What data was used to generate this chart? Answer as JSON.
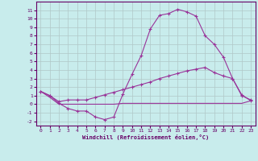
{
  "xlabel": "Windchill (Refroidissement éolien,°C)",
  "background_color": "#c8ecec",
  "grid_color": "#b0c8c8",
  "line_color": "#993399",
  "x_hours": [
    0,
    1,
    2,
    3,
    4,
    5,
    6,
    7,
    8,
    9,
    10,
    11,
    12,
    13,
    14,
    15,
    16,
    17,
    18,
    19,
    20,
    21,
    22,
    23
  ],
  "line1_y": [
    1.5,
    1.0,
    0.1,
    -0.5,
    -0.8,
    -0.8,
    -1.5,
    -1.8,
    -1.5,
    1.2,
    3.5,
    5.7,
    8.8,
    10.4,
    10.6,
    11.1,
    10.8,
    10.3,
    8.0,
    7.0,
    5.5,
    3.0,
    1.0,
    0.5
  ],
  "line2_y": [
    1.5,
    1.0,
    0.3,
    0.5,
    0.5,
    0.5,
    0.8,
    1.1,
    1.4,
    1.7,
    2.0,
    2.3,
    2.6,
    3.0,
    3.3,
    3.6,
    3.9,
    4.1,
    4.3,
    3.7,
    3.3,
    3.0,
    1.1,
    0.4
  ],
  "line3_y": [
    1.5,
    0.8,
    0.0,
    0.0,
    0.0,
    0.0,
    0.0,
    0.0,
    0.0,
    0.1,
    0.1,
    0.1,
    0.1,
    0.1,
    0.1,
    0.1,
    0.1,
    0.1,
    0.1,
    0.1,
    0.1,
    0.1,
    0.1,
    0.4
  ],
  "ylim": [
    -2.5,
    12
  ],
  "xlim": [
    -0.5,
    23.5
  ],
  "yticks": [
    -2,
    -1,
    0,
    1,
    2,
    3,
    4,
    5,
    6,
    7,
    8,
    9,
    10,
    11
  ],
  "xticks": [
    0,
    1,
    2,
    3,
    4,
    5,
    6,
    7,
    8,
    9,
    10,
    11,
    12,
    13,
    14,
    15,
    16,
    17,
    18,
    19,
    20,
    21,
    22,
    23
  ]
}
